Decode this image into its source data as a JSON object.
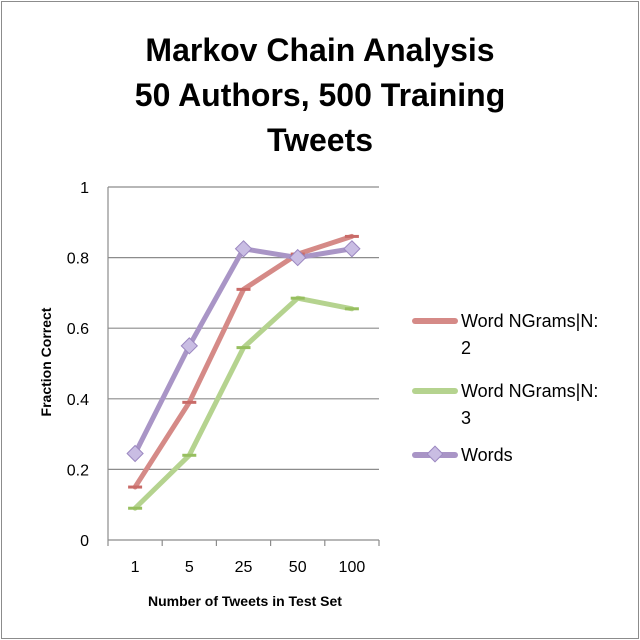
{
  "chart_data": {
    "type": "line",
    "title_lines": [
      "Markov Chain Analysis",
      "50 Authors, 500 Training",
      "Tweets"
    ],
    "xlabel": "Number of Tweets in Test Set",
    "ylabel": "Fraction Correct",
    "categories": [
      "1",
      "5",
      "25",
      "50",
      "100"
    ],
    "ylim": [
      0,
      1
    ],
    "yticks": [
      "0",
      "0.2",
      "0.4",
      "0.6",
      "0.8",
      "1"
    ],
    "grid": true,
    "legend_position": "right",
    "series": [
      {
        "name_lines": [
          "Word NGrams|N:",
          "2"
        ],
        "color": "#d58a87",
        "marker_color": "#c96b68",
        "marker": "dash",
        "values": [
          0.15,
          0.39,
          0.71,
          0.81,
          0.86
        ]
      },
      {
        "name_lines": [
          "Word NGrams|N:",
          "3"
        ],
        "color": "#b5d38f",
        "marker_color": "#97bf5f",
        "marker": "dash",
        "values": [
          0.09,
          0.24,
          0.545,
          0.685,
          0.655
        ]
      },
      {
        "name_lines": [
          "Words"
        ],
        "color": "#a995c6",
        "marker_color": "#c9bde3",
        "marker": "diamond",
        "values": [
          0.245,
          0.55,
          0.825,
          0.8,
          0.825
        ]
      }
    ]
  }
}
